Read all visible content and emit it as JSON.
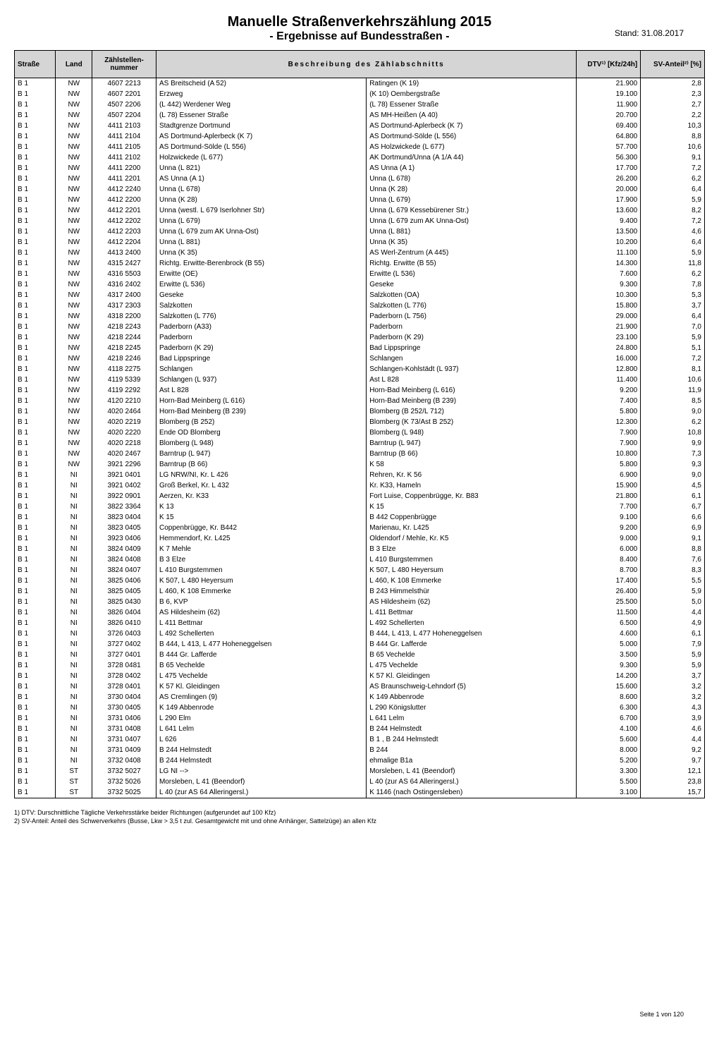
{
  "header": {
    "title": "Manuelle Straßenverkehrszählung 2015",
    "subtitle": "- Ergebnisse auf Bundesstraßen -",
    "date": "Stand: 31.08.2017"
  },
  "table": {
    "columns": {
      "strasse": "Straße",
      "land": "Land",
      "zaehlstellen": "Zählstellen-nummer",
      "beschreibung": "Beschreibung des Zählabschnitts",
      "dtv": "DTV¹⁾ [Kfz/24h]",
      "sv": "SV-Anteil²⁾ [%]"
    },
    "rows": [
      {
        "strasse": "B 1",
        "land": "NW",
        "zaehl": "4607 2213",
        "beschr1": "AS Breitscheid (A 52)",
        "beschr2": "Ratingen (K 19)",
        "dtv": "21.900",
        "sv": "2,8"
      },
      {
        "strasse": "B 1",
        "land": "NW",
        "zaehl": "4607 2201",
        "beschr1": "Erzweg",
        "beschr2": "(K 10) Oembergstraße",
        "dtv": "19.100",
        "sv": "2,3"
      },
      {
        "strasse": "B 1",
        "land": "NW",
        "zaehl": "4507 2206",
        "beschr1": "(L 442) Werdener Weg",
        "beschr2": "(L 78) Essener Straße",
        "dtv": "11.900",
        "sv": "2,7"
      },
      {
        "strasse": "B 1",
        "land": "NW",
        "zaehl": "4507 2204",
        "beschr1": "(L 78) Essener Straße",
        "beschr2": "AS MH-Heißen (A 40)",
        "dtv": "20.700",
        "sv": "2,2"
      },
      {
        "strasse": "B 1",
        "land": "NW",
        "zaehl": "4411 2103",
        "beschr1": "Stadtgrenze Dortmund",
        "beschr2": "AS Dortmund-Aplerbeck (K 7)",
        "dtv": "69.400",
        "sv": "10,3"
      },
      {
        "strasse": "B 1",
        "land": "NW",
        "zaehl": "4411 2104",
        "beschr1": "AS Dortmund-Aplerbeck (K 7)",
        "beschr2": "AS Dortmund-Sölde (L 556)",
        "dtv": "64.800",
        "sv": "8,8"
      },
      {
        "strasse": "B 1",
        "land": "NW",
        "zaehl": "4411 2105",
        "beschr1": "AS Dortmund-Sölde (L 556)",
        "beschr2": "AS Holzwickede (L 677)",
        "dtv": "57.700",
        "sv": "10,6"
      },
      {
        "strasse": "B 1",
        "land": "NW",
        "zaehl": "4411 2102",
        "beschr1": "Holzwickede (L 677)",
        "beschr2": "AK Dortmund/Unna (A 1/A 44)",
        "dtv": "56.300",
        "sv": "9,1"
      },
      {
        "strasse": "B 1",
        "land": "NW",
        "zaehl": "4411 2200",
        "beschr1": "Unna (L 821)",
        "beschr2": "AS Unna (A 1)",
        "dtv": "17.700",
        "sv": "7,2"
      },
      {
        "strasse": "B 1",
        "land": "NW",
        "zaehl": "4411 2201",
        "beschr1": "AS Unna (A 1)",
        "beschr2": "Unna (L 678)",
        "dtv": "26.200",
        "sv": "6,2"
      },
      {
        "strasse": "B 1",
        "land": "NW",
        "zaehl": "4412 2240",
        "beschr1": "Unna (L 678)",
        "beschr2": "Unna (K 28)",
        "dtv": "20.000",
        "sv": "6,4"
      },
      {
        "strasse": "B 1",
        "land": "NW",
        "zaehl": "4412 2200",
        "beschr1": "Unna (K 28)",
        "beschr2": "Unna (L 679)",
        "dtv": "17.900",
        "sv": "5,9"
      },
      {
        "strasse": "B 1",
        "land": "NW",
        "zaehl": "4412 2201",
        "beschr1": "Unna (westl. L 679 Iserlohner Str)",
        "beschr2": "Unna (L 679 Kessebürener Str.)",
        "dtv": "13.600",
        "sv": "8,2"
      },
      {
        "strasse": "B 1",
        "land": "NW",
        "zaehl": "4412 2202",
        "beschr1": "Unna (L 679)",
        "beschr2": "Unna (L 679 zum AK Unna-Ost)",
        "dtv": "9.400",
        "sv": "7,2"
      },
      {
        "strasse": "B 1",
        "land": "NW",
        "zaehl": "4412 2203",
        "beschr1": "Unna (L 679 zum AK Unna-Ost)",
        "beschr2": "Unna (L 881)",
        "dtv": "13.500",
        "sv": "4,6"
      },
      {
        "strasse": "B 1",
        "land": "NW",
        "zaehl": "4412 2204",
        "beschr1": "Unna (L 881)",
        "beschr2": "Unna (K 35)",
        "dtv": "10.200",
        "sv": "6,4"
      },
      {
        "strasse": "B 1",
        "land": "NW",
        "zaehl": "4413 2400",
        "beschr1": "Unna (K 35)",
        "beschr2": "AS Werl-Zentrum (A 445)",
        "dtv": "11.100",
        "sv": "5,9"
      },
      {
        "strasse": "B 1",
        "land": "NW",
        "zaehl": "4315 2427",
        "beschr1": "Richtg. Erwitte-Berenbrock (B 55)",
        "beschr2": "Richtg. Erwitte (B 55)",
        "dtv": "14.300",
        "sv": "11,8"
      },
      {
        "strasse": "B 1",
        "land": "NW",
        "zaehl": "4316 5503",
        "beschr1": "Erwitte (OE)",
        "beschr2": "Erwitte (L 536)",
        "dtv": "7.600",
        "sv": "6,2"
      },
      {
        "strasse": "B 1",
        "land": "NW",
        "zaehl": "4316 2402",
        "beschr1": "Erwitte (L 536)",
        "beschr2": "Geseke",
        "dtv": "9.300",
        "sv": "7,8"
      },
      {
        "strasse": "B 1",
        "land": "NW",
        "zaehl": "4317 2400",
        "beschr1": "Geseke",
        "beschr2": "Salzkotten (OA)",
        "dtv": "10.300",
        "sv": "5,3"
      },
      {
        "strasse": "B 1",
        "land": "NW",
        "zaehl": "4317 2303",
        "beschr1": "Salzkotten",
        "beschr2": "Salzkotten (L 776)",
        "dtv": "15.800",
        "sv": "3,7"
      },
      {
        "strasse": "B 1",
        "land": "NW",
        "zaehl": "4318 2200",
        "beschr1": "Salzkotten (L 776)",
        "beschr2": "Paderborn (L 756)",
        "dtv": "29.000",
        "sv": "6,4"
      },
      {
        "strasse": "B 1",
        "land": "NW",
        "zaehl": "4218 2243",
        "beschr1": "Paderborn (A33)",
        "beschr2": "Paderborn",
        "dtv": "21.900",
        "sv": "7,0"
      },
      {
        "strasse": "B 1",
        "land": "NW",
        "zaehl": "4218 2244",
        "beschr1": "Paderborn",
        "beschr2": "Paderborn (K 29)",
        "dtv": "23.100",
        "sv": "5,9"
      },
      {
        "strasse": "B 1",
        "land": "NW",
        "zaehl": "4218 2245",
        "beschr1": "Paderborn (K 29)",
        "beschr2": "Bad Lippspringe",
        "dtv": "24.800",
        "sv": "5,1"
      },
      {
        "strasse": "B 1",
        "land": "NW",
        "zaehl": "4218 2246",
        "beschr1": "Bad Lippspringe",
        "beschr2": "Schlangen",
        "dtv": "16.000",
        "sv": "7,2"
      },
      {
        "strasse": "B 1",
        "land": "NW",
        "zaehl": "4118 2275",
        "beschr1": "Schlangen",
        "beschr2": "Schlangen-Kohlstädt (L 937)",
        "dtv": "12.800",
        "sv": "8,1"
      },
      {
        "strasse": "B 1",
        "land": "NW",
        "zaehl": "4119 5339",
        "beschr1": "Schlangen (L 937)",
        "beschr2": "Ast L 828",
        "dtv": "11.400",
        "sv": "10,6"
      },
      {
        "strasse": "B 1",
        "land": "NW",
        "zaehl": "4119 2292",
        "beschr1": "Ast L 828",
        "beschr2": "Horn-Bad Meinberg (L 616)",
        "dtv": "9.200",
        "sv": "11,9"
      },
      {
        "strasse": "B 1",
        "land": "NW",
        "zaehl": "4120 2210",
        "beschr1": "Horn-Bad Meinberg (L 616)",
        "beschr2": "Horn-Bad Meinberg (B 239)",
        "dtv": "7.400",
        "sv": "8,5"
      },
      {
        "strasse": "B 1",
        "land": "NW",
        "zaehl": "4020 2464",
        "beschr1": "Horn-Bad Meinberg (B 239)",
        "beschr2": "Blomberg (B 252/L 712)",
        "dtv": "5.800",
        "sv": "9,0"
      },
      {
        "strasse": "B 1",
        "land": "NW",
        "zaehl": "4020 2219",
        "beschr1": "Blomberg (B 252)",
        "beschr2": "Blomberg (K 73/Ast B 252)",
        "dtv": "12.300",
        "sv": "6,2"
      },
      {
        "strasse": "B 1",
        "land": "NW",
        "zaehl": "4020 2220",
        "beschr1": "Ende OD Blomberg",
        "beschr2": "Blomberg (L 948)",
        "dtv": "7.900",
        "sv": "10,8"
      },
      {
        "strasse": "B 1",
        "land": "NW",
        "zaehl": "4020 2218",
        "beschr1": "Blomberg (L 948)",
        "beschr2": "Barntrup (L 947)",
        "dtv": "7.900",
        "sv": "9,9"
      },
      {
        "strasse": "B 1",
        "land": "NW",
        "zaehl": "4020 2467",
        "beschr1": "Barntrup (L 947)",
        "beschr2": "Barntrup (B 66)",
        "dtv": "10.800",
        "sv": "7,3"
      },
      {
        "strasse": "B 1",
        "land": "NW",
        "zaehl": "3921 2296",
        "beschr1": "Barntrup (B 66)",
        "beschr2": "K 58",
        "dtv": "5.800",
        "sv": "9,3"
      },
      {
        "strasse": "B 1",
        "land": "NI",
        "zaehl": "3921 0401",
        "beschr1": "LG NRW/NI, Kr. L 426",
        "beschr2": "Rehren, Kr. K 56",
        "dtv": "6.900",
        "sv": "9,0"
      },
      {
        "strasse": "B 1",
        "land": "NI",
        "zaehl": "3921 0402",
        "beschr1": "Groß Berkel, Kr. L 432",
        "beschr2": "Kr. K33, Hameln",
        "dtv": "15.900",
        "sv": "4,5"
      },
      {
        "strasse": "B 1",
        "land": "NI",
        "zaehl": "3922 0901",
        "beschr1": "Aerzen, Kr. K33",
        "beschr2": "Fort Luise, Coppenbrügge, Kr. B83",
        "dtv": "21.800",
        "sv": "6,1"
      },
      {
        "strasse": "B 1",
        "land": "NI",
        "zaehl": "3822 3364",
        "beschr1": "K 13",
        "beschr2": "K 15",
        "dtv": "7.700",
        "sv": "6,7"
      },
      {
        "strasse": "B 1",
        "land": "NI",
        "zaehl": "3823 0404",
        "beschr1": "K 15",
        "beschr2": "B 442 Coppenbrügge",
        "dtv": "9.100",
        "sv": "6,6"
      },
      {
        "strasse": "B 1",
        "land": "NI",
        "zaehl": "3823 0405",
        "beschr1": "Coppenbrügge, Kr. B442",
        "beschr2": "Marienau, Kr. L425",
        "dtv": "9.200",
        "sv": "6,9"
      },
      {
        "strasse": "B 1",
        "land": "NI",
        "zaehl": "3923 0406",
        "beschr1": "Hemmendorf, Kr. L425",
        "beschr2": "Oldendorf / Mehle, Kr. K5",
        "dtv": "9.000",
        "sv": "9,1"
      },
      {
        "strasse": "B 1",
        "land": "NI",
        "zaehl": "3824 0409",
        "beschr1": "K 7 Mehle",
        "beschr2": "B 3 Elze",
        "dtv": "6.000",
        "sv": "8,8"
      },
      {
        "strasse": "B 1",
        "land": "NI",
        "zaehl": "3824 0408",
        "beschr1": "B 3 Elze",
        "beschr2": "L 410 Burgstemmen",
        "dtv": "8.400",
        "sv": "7,6"
      },
      {
        "strasse": "B 1",
        "land": "NI",
        "zaehl": "3824 0407",
        "beschr1": "L 410 Burgstemmen",
        "beschr2": "K 507, L 480 Heyersum",
        "dtv": "8.700",
        "sv": "8,3"
      },
      {
        "strasse": "B 1",
        "land": "NI",
        "zaehl": "3825 0406",
        "beschr1": "K 507, L 480 Heyersum",
        "beschr2": "L 460, K 108 Emmerke",
        "dtv": "17.400",
        "sv": "5,5"
      },
      {
        "strasse": "B 1",
        "land": "NI",
        "zaehl": "3825 0405",
        "beschr1": "L 460, K 108 Emmerke",
        "beschr2": "B 243 Himmelsthür",
        "dtv": "26.400",
        "sv": "5,9"
      },
      {
        "strasse": "B 1",
        "land": "NI",
        "zaehl": "3825 0430",
        "beschr1": "B 6, KVP",
        "beschr2": "AS Hildesheim (62)",
        "dtv": "25.500",
        "sv": "5,0"
      },
      {
        "strasse": "B 1",
        "land": "NI",
        "zaehl": "3826 0404",
        "beschr1": "AS Hildesheim (62)",
        "beschr2": "L 411 Bettmar",
        "dtv": "11.500",
        "sv": "4,4"
      },
      {
        "strasse": "B 1",
        "land": "NI",
        "zaehl": "3826 0410",
        "beschr1": "L 411 Bettmar",
        "beschr2": "L 492 Schellerten",
        "dtv": "6.500",
        "sv": "4,9"
      },
      {
        "strasse": "B 1",
        "land": "NI",
        "zaehl": "3726 0403",
        "beschr1": "L 492 Schellerten",
        "beschr2": "B 444, L 413, L 477 Hoheneggelsen",
        "dtv": "4.600",
        "sv": "6,1"
      },
      {
        "strasse": "B 1",
        "land": "NI",
        "zaehl": "3727 0402",
        "beschr1": "B 444, L 413, L 477 Hoheneggelsen",
        "beschr2": "B 444 Gr. Lafferde",
        "dtv": "5.000",
        "sv": "7,9"
      },
      {
        "strasse": "B 1",
        "land": "NI",
        "zaehl": "3727 0401",
        "beschr1": "B 444 Gr. Lafferde",
        "beschr2": "B 65 Vechelde",
        "dtv": "3.500",
        "sv": "5,9"
      },
      {
        "strasse": "B 1",
        "land": "NI",
        "zaehl": "3728 0481",
        "beschr1": "B 65 Vechelde",
        "beschr2": "L 475 Vechelde",
        "dtv": "9.300",
        "sv": "5,9"
      },
      {
        "strasse": "B 1",
        "land": "NI",
        "zaehl": "3728 0402",
        "beschr1": "L 475 Vechelde",
        "beschr2": "K 57 Kl. Gleidingen",
        "dtv": "14.200",
        "sv": "3,7"
      },
      {
        "strasse": "B 1",
        "land": "NI",
        "zaehl": "3728 0401",
        "beschr1": "K 57 Kl. Gleidingen",
        "beschr2": "AS Braunschweig-Lehndorf (5)",
        "dtv": "15.600",
        "sv": "3,2"
      },
      {
        "strasse": "B 1",
        "land": "NI",
        "zaehl": "3730 0404",
        "beschr1": "AS Cremlingen (9)",
        "beschr2": "K 149 Abbenrode",
        "dtv": "8.600",
        "sv": "3,2"
      },
      {
        "strasse": "B 1",
        "land": "NI",
        "zaehl": "3730 0405",
        "beschr1": "K 149 Abbenrode",
        "beschr2": "L 290 Königslutter",
        "dtv": "6.300",
        "sv": "4,3"
      },
      {
        "strasse": "B 1",
        "land": "NI",
        "zaehl": "3731 0406",
        "beschr1": "L 290 Elm",
        "beschr2": "L 641 Lelm",
        "dtv": "6.700",
        "sv": "3,9"
      },
      {
        "strasse": "B 1",
        "land": "NI",
        "zaehl": "3731 0408",
        "beschr1": "L 641 Lelm",
        "beschr2": "B 244 Helmstedt",
        "dtv": "4.100",
        "sv": "4,6"
      },
      {
        "strasse": "B 1",
        "land": "NI",
        "zaehl": "3731 0407",
        "beschr1": "L 626",
        "beschr2": "B 1 , B 244 Helmstedt",
        "dtv": "5.600",
        "sv": "4,4"
      },
      {
        "strasse": "B 1",
        "land": "NI",
        "zaehl": "3731 0409",
        "beschr1": "B 244 Helmstedt",
        "beschr2": "B 244",
        "dtv": "8.000",
        "sv": "9,2"
      },
      {
        "strasse": "B 1",
        "land": "NI",
        "zaehl": "3732 0408",
        "beschr1": "B 244 Helmstedt",
        "beschr2": "ehmalige B1a",
        "dtv": "5.200",
        "sv": "9,7"
      },
      {
        "strasse": "B 1",
        "land": "ST",
        "zaehl": "3732 5027",
        "beschr1": "LG NI -->",
        "beschr2": "Morsleben, L 41 (Beendorf)",
        "dtv": "3.300",
        "sv": "12,1"
      },
      {
        "strasse": "B 1",
        "land": "ST",
        "zaehl": "3732 5026",
        "beschr1": "Morsleben, L 41 (Beendorf)",
        "beschr2": "L 40 (zur AS 64 Alleringersl.)",
        "dtv": "5.500",
        "sv": "23,8"
      },
      {
        "strasse": "B 1",
        "land": "ST",
        "zaehl": "3732 5025",
        "beschr1": "L 40 (zur AS 64 Alleringersl.)",
        "beschr2": "K 1146 (nach Ostingersleben)",
        "dtv": "3.100",
        "sv": "15,7"
      }
    ]
  },
  "footer": {
    "line1": "1) DTV: Durschnittliche Tägliche Verkehrsstärke beider Richtungen (aufgerundet auf 100 Kfz)",
    "line2": "2) SV-Anteil: Anteil des Schwerverkehrs (Busse, Lkw > 3,5 t zul. Gesamtgewicht mit und ohne Anhänger, Sattelzüge) an allen Kfz",
    "page": "Seite 1 von 120"
  }
}
